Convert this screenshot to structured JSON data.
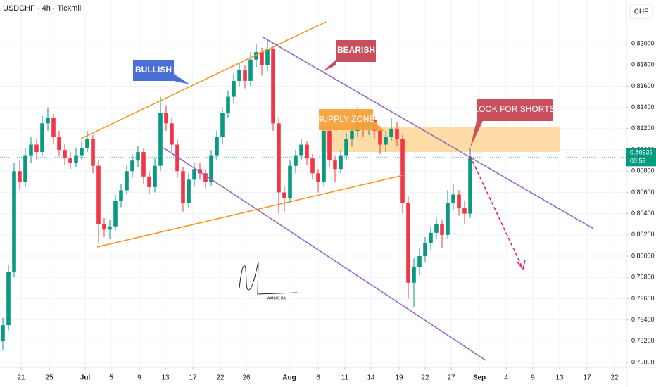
{
  "chart_data": {
    "type": "candlestick",
    "title": "USDCHF · 4h · Tickmill",
    "y_axis_unit": "CHF",
    "up_color": "#089981",
    "down_color": "#f23645",
    "grid": true,
    "ylim": [
      0.78954,
      0.82411
    ],
    "xlim": [
      -0.5,
      110.75
    ],
    "yticks": [
      {
        "value": 0.82,
        "label": "0.82000"
      },
      {
        "value": 0.818,
        "label": "0.81800"
      },
      {
        "value": 0.816,
        "label": "0.81600"
      },
      {
        "value": 0.814,
        "label": "0.81400"
      },
      {
        "value": 0.812,
        "label": "0.81200"
      },
      {
        "value": 0.81,
        "label": "0.81000"
      },
      {
        "value": 0.808,
        "label": "0.80800"
      },
      {
        "value": 0.806,
        "label": "0.80600"
      },
      {
        "value": 0.804,
        "label": "0.80400"
      },
      {
        "value": 0.802,
        "label": "0.80200"
      },
      {
        "value": 0.8,
        "label": "0.80000"
      },
      {
        "value": 0.798,
        "label": "0.79800"
      },
      {
        "value": 0.796,
        "label": "0.79600"
      },
      {
        "value": 0.794,
        "label": "0.79400"
      },
      {
        "value": 0.792,
        "label": "0.79200"
      },
      {
        "value": 0.79,
        "label": "0.79000"
      }
    ],
    "xticks": [
      {
        "value": 3.25,
        "label": "21"
      },
      {
        "value": 8.25,
        "label": "25"
      },
      {
        "value": 14.625,
        "label": "Jul"
      },
      {
        "value": 19.25,
        "label": "5"
      },
      {
        "value": 24.25,
        "label": "9"
      },
      {
        "value": 28.875,
        "label": "13"
      },
      {
        "value": 33.75,
        "label": "17"
      },
      {
        "value": 38.625,
        "label": "22"
      },
      {
        "value": 43.25,
        "label": "26"
      },
      {
        "value": 50.875,
        "label": "Aug"
      },
      {
        "value": 56,
        "label": "6"
      },
      {
        "value": 60.75,
        "label": "11"
      },
      {
        "value": 65.375,
        "label": "14"
      },
      {
        "value": 70.375,
        "label": "19"
      },
      {
        "value": 75,
        "label": "22"
      },
      {
        "value": 79.625,
        "label": "27"
      },
      {
        "value": 84.625,
        "label": "Sep"
      },
      {
        "value": 89.375,
        "label": "4"
      },
      {
        "value": 94.125,
        "label": "9"
      },
      {
        "value": 98.875,
        "label": "13"
      },
      {
        "value": 103.75,
        "label": "17"
      },
      {
        "value": 108.625,
        "label": "22"
      }
    ],
    "last_price": 0.80932,
    "countdown": "00:52",
    "annotations": {
      "bullish": "BULLISH",
      "bearish": "BEARISH",
      "supply_zone": "SUPPLY ZONE",
      "look_for_shorts": "LOOK FOR SHORTS",
      "signature": "AANKO RAI"
    },
    "candles": [
      [
        0.792,
        0.7942,
        0.7912,
        0.7935
      ],
      [
        0.7935,
        0.7992,
        0.793,
        0.7985
      ],
      [
        0.7985,
        0.8088,
        0.798,
        0.808
      ],
      [
        0.808,
        0.809,
        0.8062,
        0.807
      ],
      [
        0.807,
        0.8102,
        0.8065,
        0.8095
      ],
      [
        0.8095,
        0.8112,
        0.8088,
        0.8105
      ],
      [
        0.8105,
        0.811,
        0.809,
        0.8098
      ],
      [
        0.8098,
        0.8132,
        0.8094,
        0.8125
      ],
      [
        0.8125,
        0.814,
        0.8118,
        0.813
      ],
      [
        0.813,
        0.8134,
        0.8105,
        0.8112
      ],
      [
        0.8112,
        0.8118,
        0.8094,
        0.81
      ],
      [
        0.81,
        0.8106,
        0.8086,
        0.8092
      ],
      [
        0.8092,
        0.8098,
        0.8082,
        0.8088
      ],
      [
        0.8088,
        0.8102,
        0.8084,
        0.8095
      ],
      [
        0.8095,
        0.8108,
        0.809,
        0.8102
      ],
      [
        0.8102,
        0.8118,
        0.8098,
        0.811
      ],
      [
        0.811,
        0.8114,
        0.8078,
        0.8085
      ],
      [
        0.8085,
        0.809,
        0.8012,
        0.803
      ],
      [
        0.803,
        0.8036,
        0.8018,
        0.8025
      ],
      [
        0.8025,
        0.8034,
        0.8016,
        0.8028
      ],
      [
        0.8028,
        0.8058,
        0.8024,
        0.8052
      ],
      [
        0.8052,
        0.8068,
        0.8046,
        0.8062
      ],
      [
        0.8062,
        0.8086,
        0.8058,
        0.808
      ],
      [
        0.808,
        0.8096,
        0.8074,
        0.809
      ],
      [
        0.809,
        0.8104,
        0.8084,
        0.8098
      ],
      [
        0.8098,
        0.8102,
        0.8068,
        0.8075
      ],
      [
        0.8075,
        0.808,
        0.8058,
        0.8065
      ],
      [
        0.8065,
        0.8092,
        0.806,
        0.8085
      ],
      [
        0.8085,
        0.815,
        0.808,
        0.8135
      ],
      [
        0.8135,
        0.8142,
        0.8118,
        0.8125
      ],
      [
        0.8125,
        0.813,
        0.8098,
        0.8105
      ],
      [
        0.8105,
        0.811,
        0.8074,
        0.808
      ],
      [
        0.808,
        0.8084,
        0.8042,
        0.805
      ],
      [
        0.805,
        0.8078,
        0.8046,
        0.8072
      ],
      [
        0.8072,
        0.8088,
        0.8066,
        0.8082
      ],
      [
        0.8082,
        0.8088,
        0.8072,
        0.8078
      ],
      [
        0.8078,
        0.8082,
        0.8064,
        0.807
      ],
      [
        0.807,
        0.81,
        0.8066,
        0.8095
      ],
      [
        0.8095,
        0.8118,
        0.809,
        0.8112
      ],
      [
        0.8112,
        0.814,
        0.8106,
        0.8135
      ],
      [
        0.8135,
        0.8156,
        0.813,
        0.815
      ],
      [
        0.815,
        0.8172,
        0.8144,
        0.8165
      ],
      [
        0.8165,
        0.8182,
        0.816,
        0.8175
      ],
      [
        0.8175,
        0.818,
        0.8158,
        0.8165
      ],
      [
        0.8165,
        0.8192,
        0.816,
        0.8185
      ],
      [
        0.8185,
        0.82,
        0.8178,
        0.8192
      ],
      [
        0.8192,
        0.8196,
        0.817,
        0.818
      ],
      [
        0.818,
        0.8205,
        0.8174,
        0.8195
      ],
      [
        0.8195,
        0.8198,
        0.8118,
        0.8125
      ],
      [
        0.8125,
        0.813,
        0.804,
        0.806
      ],
      [
        0.806,
        0.8066,
        0.8042,
        0.8055
      ],
      [
        0.8055,
        0.809,
        0.805,
        0.8085
      ],
      [
        0.8085,
        0.81,
        0.8078,
        0.8095
      ],
      [
        0.8095,
        0.811,
        0.809,
        0.8105
      ],
      [
        0.8105,
        0.8108,
        0.8086,
        0.8092
      ],
      [
        0.8092,
        0.8096,
        0.8072,
        0.8078
      ],
      [
        0.8078,
        0.8082,
        0.806,
        0.807
      ],
      [
        0.807,
        0.813,
        0.8066,
        0.8118
      ],
      [
        0.8118,
        0.8122,
        0.8084,
        0.809
      ],
      [
        0.809,
        0.8094,
        0.807,
        0.8082
      ],
      [
        0.8082,
        0.81,
        0.8078,
        0.8095
      ],
      [
        0.8095,
        0.8116,
        0.809,
        0.811
      ],
      [
        0.811,
        0.8124,
        0.8104,
        0.8118
      ],
      [
        0.8118,
        0.814,
        0.8112,
        0.8125
      ],
      [
        0.8125,
        0.813,
        0.8112,
        0.812
      ],
      [
        0.812,
        0.8138,
        0.8114,
        0.8128
      ],
      [
        0.8128,
        0.8132,
        0.811,
        0.8118
      ],
      [
        0.8118,
        0.8122,
        0.8096,
        0.8105
      ],
      [
        0.8105,
        0.8118,
        0.8098,
        0.8112
      ],
      [
        0.8112,
        0.813,
        0.8108,
        0.812
      ],
      [
        0.812,
        0.8126,
        0.8104,
        0.811
      ],
      [
        0.811,
        0.8114,
        0.804,
        0.805
      ],
      [
        0.805,
        0.8056,
        0.796,
        0.7975
      ],
      [
        0.7975,
        0.7998,
        0.7952,
        0.799
      ],
      [
        0.799,
        0.8008,
        0.7982,
        0.8
      ],
      [
        0.8,
        0.8018,
        0.7994,
        0.8012
      ],
      [
        0.8012,
        0.8028,
        0.8006,
        0.8022
      ],
      [
        0.8022,
        0.8036,
        0.8016,
        0.803
      ],
      [
        0.803,
        0.8034,
        0.8008,
        0.802
      ],
      [
        0.802,
        0.8062,
        0.8016,
        0.805
      ],
      [
        0.805,
        0.8068,
        0.8044,
        0.8058
      ],
      [
        0.8058,
        0.8062,
        0.8038,
        0.8045
      ],
      [
        0.8045,
        0.8052,
        0.803,
        0.804
      ],
      [
        0.804,
        0.8102,
        0.8036,
        0.8093
      ]
    ]
  }
}
